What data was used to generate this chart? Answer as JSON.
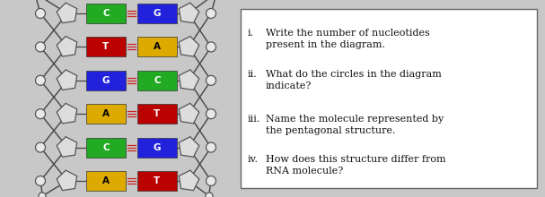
{
  "background_color": "#c8c8c8",
  "box_bg": "#ffffff",
  "box_edge": "#666666",
  "questions": [
    [
      "i.",
      "Write the number of nucleotides\npresent in the diagram."
    ],
    [
      "ii.",
      "What do the circles in the diagram\nindicate?"
    ],
    [
      "iii.",
      "Name the molecule represented by\nthe pentagonal structure."
    ],
    [
      "iv.",
      "How does this structure differ from\nRNA molecule?"
    ]
  ],
  "base_pairs": [
    {
      "left": "C",
      "right": "G",
      "left_color": "#22aa22",
      "right_color": "#2222dd",
      "left_text_color": "#ffffff",
      "right_text_color": "#ffffff"
    },
    {
      "left": "T",
      "right": "A",
      "left_color": "#bb0000",
      "right_color": "#ddaa00",
      "left_text_color": "#ffffff",
      "right_text_color": "#000000"
    },
    {
      "left": "G",
      "right": "C",
      "left_color": "#2222dd",
      "right_color": "#22aa22",
      "left_text_color": "#ffffff",
      "right_text_color": "#ffffff"
    },
    {
      "left": "A",
      "right": "T",
      "left_color": "#ddaa00",
      "right_color": "#bb0000",
      "left_text_color": "#000000",
      "right_text_color": "#ffffff"
    },
    {
      "left": "C",
      "right": "G",
      "left_color": "#22aa22",
      "right_color": "#2222dd",
      "left_text_color": "#ffffff",
      "right_text_color": "#ffffff"
    },
    {
      "left": "A",
      "right": "T",
      "left_color": "#ddaa00",
      "right_color": "#bb0000",
      "left_text_color": "#000000",
      "right_text_color": "#ffffff"
    }
  ],
  "strand_color": "#444444",
  "hbond_color": "#cc2222",
  "pentagon_fill": "#dddddd",
  "pentagon_edge": "#555555",
  "circle_fill": "#e8e8e8",
  "circle_edge": "#555555"
}
